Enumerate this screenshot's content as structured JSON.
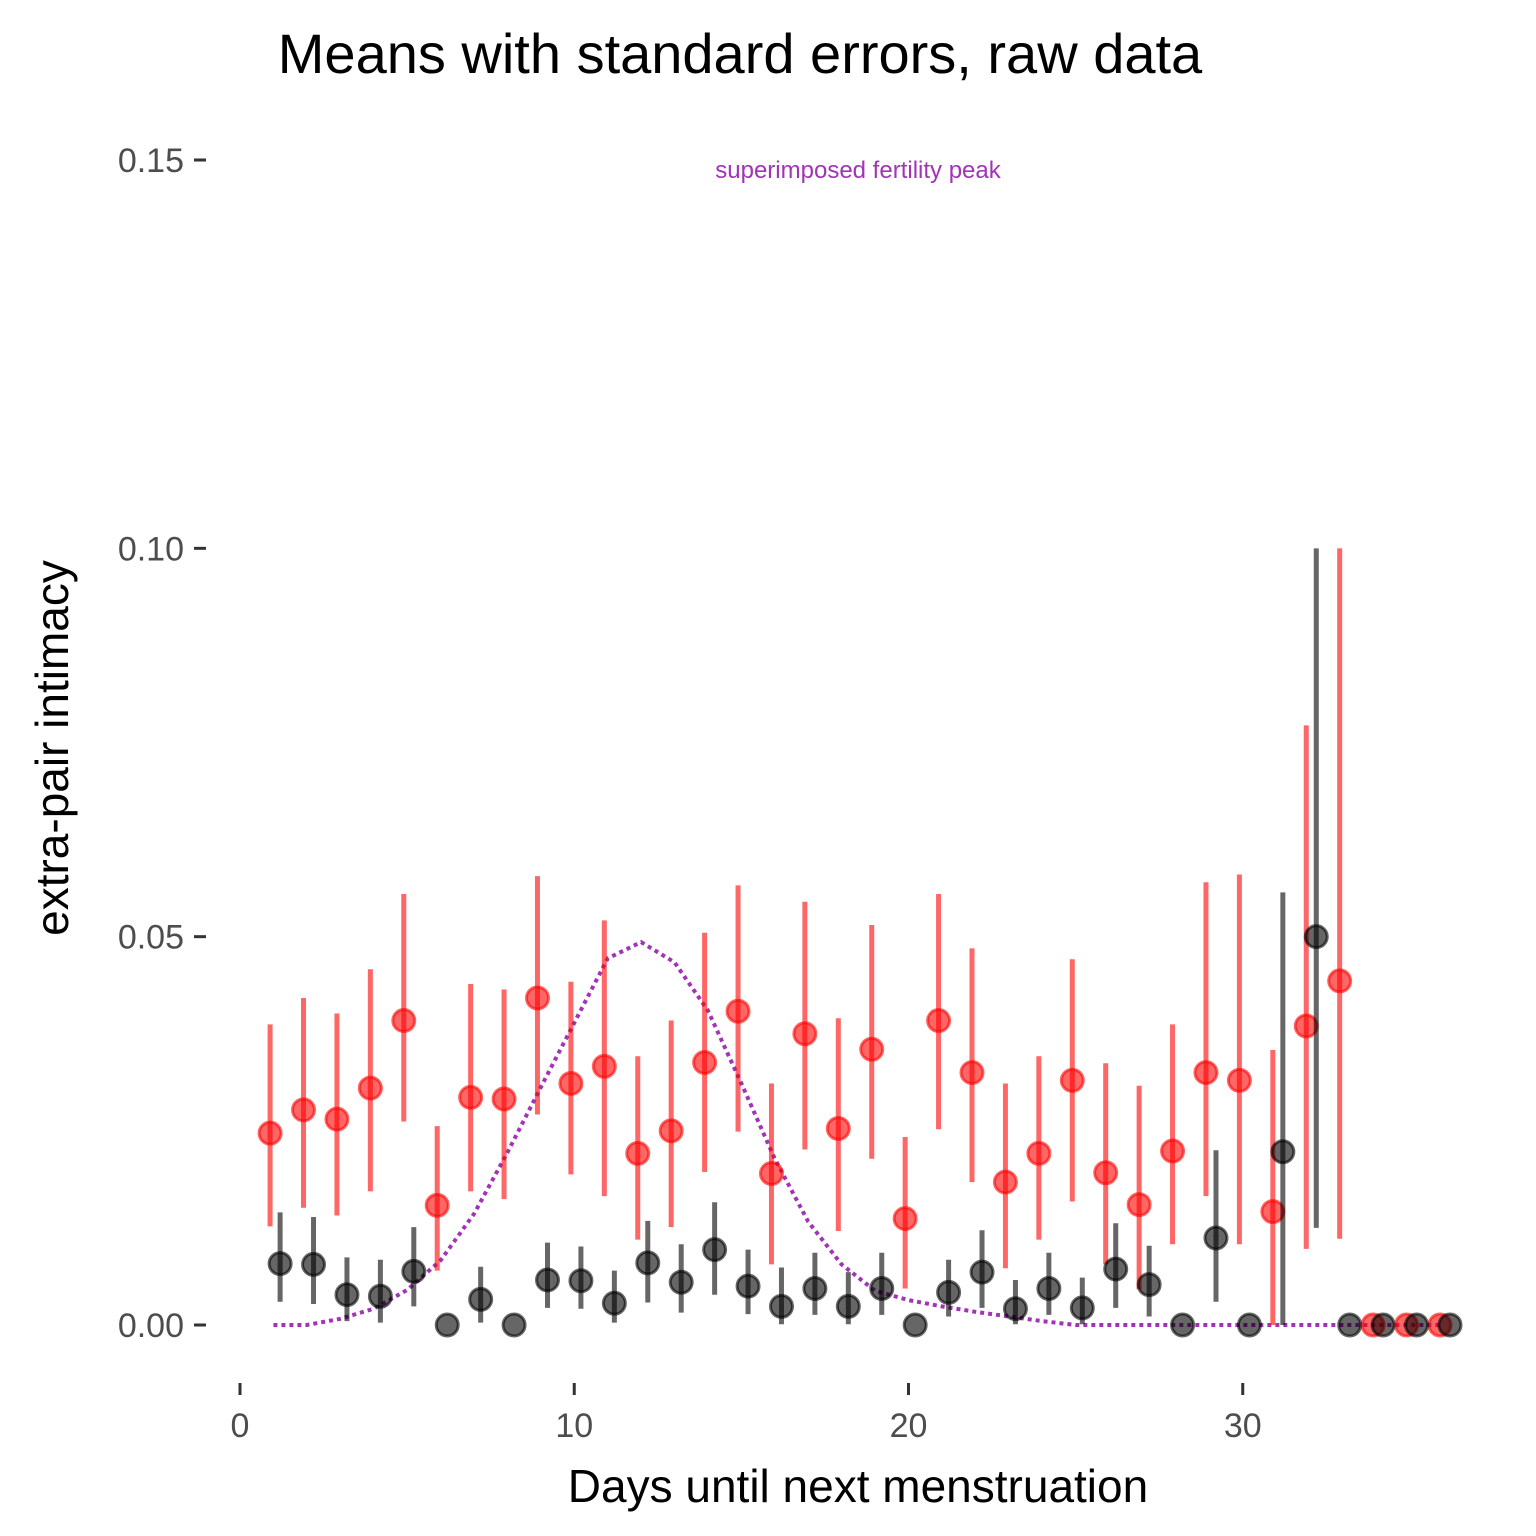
{
  "chart_data": {
    "type": "scatter",
    "title": "Means with standard errors, raw data",
    "xlabel": "Days until next menstruation",
    "ylabel": "extra-pair intimacy",
    "xlim": [
      0,
      36.5
    ],
    "ylim": [
      0,
      0.15
    ],
    "x_ticks": [
      0,
      10,
      20,
      30
    ],
    "y_ticks": [
      0.0,
      0.05,
      0.1,
      0.15
    ],
    "x_tick_labels": [
      "0",
      "10",
      "20",
      "30"
    ],
    "y_tick_labels": [
      "0.00",
      "0.05",
      "0.10",
      "0.15"
    ],
    "grid": false,
    "annotation": {
      "text": "superimposed fertility peak",
      "x": 18.5,
      "y": 0.149,
      "color": "#a233b7"
    },
    "series": [
      {
        "color": "#ff0000",
        "points": [
          {
            "x": 0.9,
            "y": 0.0247,
            "lo": 0.0127,
            "hi": 0.0387
          },
          {
            "x": 1.9,
            "y": 0.0277,
            "lo": 0.0151,
            "hi": 0.0421
          },
          {
            "x": 2.9,
            "y": 0.0265,
            "lo": 0.0141,
            "hi": 0.0401
          },
          {
            "x": 3.9,
            "y": 0.0305,
            "lo": 0.0172,
            "hi": 0.0458
          },
          {
            "x": 4.9,
            "y": 0.0392,
            "lo": 0.0262,
            "hi": 0.0555
          },
          {
            "x": 5.9,
            "y": 0.0154,
            "lo": 0.007,
            "hi": 0.0256
          },
          {
            "x": 6.9,
            "y": 0.0293,
            "lo": 0.0172,
            "hi": 0.0439
          },
          {
            "x": 7.9,
            "y": 0.0291,
            "lo": 0.0162,
            "hi": 0.0432
          },
          {
            "x": 8.9,
            "y": 0.0421,
            "lo": 0.0271,
            "hi": 0.0578
          },
          {
            "x": 9.9,
            "y": 0.0311,
            "lo": 0.0194,
            "hi": 0.0442
          },
          {
            "x": 10.9,
            "y": 0.0333,
            "lo": 0.0166,
            "hi": 0.0521
          },
          {
            "x": 11.9,
            "y": 0.0221,
            "lo": 0.011,
            "hi": 0.0346
          },
          {
            "x": 12.9,
            "y": 0.025,
            "lo": 0.0126,
            "hi": 0.0392
          },
          {
            "x": 13.9,
            "y": 0.0338,
            "lo": 0.0197,
            "hi": 0.0505
          },
          {
            "x": 14.9,
            "y": 0.0404,
            "lo": 0.0249,
            "hi": 0.0566
          },
          {
            "x": 15.9,
            "y": 0.0195,
            "lo": 0.0078,
            "hi": 0.0311
          },
          {
            "x": 16.9,
            "y": 0.0375,
            "lo": 0.0226,
            "hi": 0.0545
          },
          {
            "x": 17.9,
            "y": 0.0253,
            "lo": 0.0121,
            "hi": 0.0395
          },
          {
            "x": 18.9,
            "y": 0.0355,
            "lo": 0.0214,
            "hi": 0.0515
          },
          {
            "x": 19.9,
            "y": 0.0137,
            "lo": 0.0047,
            "hi": 0.0242
          },
          {
            "x": 20.9,
            "y": 0.0392,
            "lo": 0.0252,
            "hi": 0.0555
          },
          {
            "x": 21.9,
            "y": 0.0325,
            "lo": 0.0184,
            "hi": 0.0485
          },
          {
            "x": 22.9,
            "y": 0.0184,
            "lo": 0.0073,
            "hi": 0.0311
          },
          {
            "x": 23.9,
            "y": 0.0221,
            "lo": 0.011,
            "hi": 0.0346
          },
          {
            "x": 24.9,
            "y": 0.0315,
            "lo": 0.0159,
            "hi": 0.0471
          },
          {
            "x": 25.9,
            "y": 0.0196,
            "lo": 0.0078,
            "hi": 0.0337
          },
          {
            "x": 26.9,
            "y": 0.0155,
            "lo": 0.0046,
            "hi": 0.0308
          },
          {
            "x": 27.9,
            "y": 0.0224,
            "lo": 0.0104,
            "hi": 0.0387
          },
          {
            "x": 28.9,
            "y": 0.0325,
            "lo": 0.0166,
            "hi": 0.057
          },
          {
            "x": 29.9,
            "y": 0.0315,
            "lo": 0.0104,
            "hi": 0.058
          },
          {
            "x": 30.9,
            "y": 0.0146,
            "lo": 0.0,
            "hi": 0.0354
          },
          {
            "x": 31.9,
            "y": 0.0385,
            "lo": 0.0098,
            "hi": 0.0772
          },
          {
            "x": 32.9,
            "y": 0.0443,
            "lo": 0.0111,
            "hi": 0.1
          },
          {
            "x": 33.9,
            "y": 0.0,
            "lo": 0.0,
            "hi": 0.0
          },
          {
            "x": 34.9,
            "y": 0.0,
            "lo": 0.0,
            "hi": 0.0
          },
          {
            "x": 35.9,
            "y": 0.0,
            "lo": 0.0,
            "hi": 0.0
          }
        ]
      },
      {
        "color": "#000000",
        "points": [
          {
            "x": 1.2,
            "y": 0.0079,
            "lo": 0.003,
            "hi": 0.0145
          },
          {
            "x": 2.2,
            "y": 0.0078,
            "lo": 0.0027,
            "hi": 0.0139
          },
          {
            "x": 3.2,
            "y": 0.0039,
            "lo": 0.0005,
            "hi": 0.0087
          },
          {
            "x": 4.2,
            "y": 0.0037,
            "lo": 0.0003,
            "hi": 0.0084
          },
          {
            "x": 5.2,
            "y": 0.0069,
            "lo": 0.0024,
            "hi": 0.0126
          },
          {
            "x": 6.2,
            "y": 0.0,
            "lo": 0.0,
            "hi": 0.0
          },
          {
            "x": 7.2,
            "y": 0.0033,
            "lo": 0.0003,
            "hi": 0.0075
          },
          {
            "x": 8.2,
            "y": 0.0,
            "lo": 0.0,
            "hi": 0.0
          },
          {
            "x": 9.2,
            "y": 0.0058,
            "lo": 0.0022,
            "hi": 0.0106
          },
          {
            "x": 10.2,
            "y": 0.0057,
            "lo": 0.0021,
            "hi": 0.0101
          },
          {
            "x": 11.2,
            "y": 0.0028,
            "lo": 0.0003,
            "hi": 0.007
          },
          {
            "x": 12.2,
            "y": 0.008,
            "lo": 0.0029,
            "hi": 0.0134
          },
          {
            "x": 13.2,
            "y": 0.0055,
            "lo": 0.0016,
            "hi": 0.0104
          },
          {
            "x": 14.2,
            "y": 0.0097,
            "lo": 0.0039,
            "hi": 0.0158
          },
          {
            "x": 15.2,
            "y": 0.005,
            "lo": 0.0014,
            "hi": 0.0097
          },
          {
            "x": 16.2,
            "y": 0.0024,
            "lo": 0.0001,
            "hi": 0.0074
          },
          {
            "x": 17.2,
            "y": 0.0047,
            "lo": 0.0013,
            "hi": 0.0093
          },
          {
            "x": 18.2,
            "y": 0.0024,
            "lo": 0.0001,
            "hi": 0.0068
          },
          {
            "x": 19.2,
            "y": 0.0047,
            "lo": 0.0013,
            "hi": 0.0093
          },
          {
            "x": 20.2,
            "y": 0.0,
            "lo": 0.0,
            "hi": 0.0
          },
          {
            "x": 21.2,
            "y": 0.0042,
            "lo": 0.0011,
            "hi": 0.0084
          },
          {
            "x": 22.2,
            "y": 0.0068,
            "lo": 0.0022,
            "hi": 0.0122
          },
          {
            "x": 23.2,
            "y": 0.0021,
            "lo": 0.0001,
            "hi": 0.0058
          },
          {
            "x": 24.2,
            "y": 0.0047,
            "lo": 0.0013,
            "hi": 0.0093
          },
          {
            "x": 25.2,
            "y": 0.0022,
            "lo": 0.0001,
            "hi": 0.0061
          },
          {
            "x": 26.2,
            "y": 0.0072,
            "lo": 0.0022,
            "hi": 0.0131
          },
          {
            "x": 27.2,
            "y": 0.0052,
            "lo": 0.0011,
            "hi": 0.0102
          },
          {
            "x": 28.2,
            "y": 0.0,
            "lo": 0.0,
            "hi": 0.0
          },
          {
            "x": 29.2,
            "y": 0.0112,
            "lo": 0.003,
            "hi": 0.0225
          },
          {
            "x": 30.2,
            "y": 0.0,
            "lo": 0.0,
            "hi": 0.0
          },
          {
            "x": 31.2,
            "y": 0.0223,
            "lo": 0.0,
            "hi": 0.0557
          },
          {
            "x": 32.2,
            "y": 0.05,
            "lo": 0.0125,
            "hi": 0.1
          },
          {
            "x": 33.2,
            "y": 0.0,
            "lo": 0.0,
            "hi": 0.0
          },
          {
            "x": 34.2,
            "y": 0.0,
            "lo": 0.0,
            "hi": 0.0
          },
          {
            "x": 35.2,
            "y": 0.0,
            "lo": 0.0,
            "hi": 0.0
          },
          {
            "x": 36.2,
            "y": 0.0,
            "lo": 0.0,
            "hi": 0.0
          }
        ]
      },
      {
        "name": "superimposed fertility peak",
        "type": "line",
        "style": "dotted",
        "color": "#a233b7",
        "x": [
          1,
          2,
          3,
          4,
          5,
          6,
          7,
          8,
          9,
          10,
          11,
          12,
          13,
          14,
          15,
          16,
          17,
          18,
          19,
          20,
          21,
          22,
          23,
          24,
          25,
          26,
          27,
          28,
          29,
          30,
          31,
          32,
          33,
          34,
          35,
          36
        ],
        "y": [
          0.0,
          0.0,
          0.0008,
          0.0021,
          0.0045,
          0.0083,
          0.0143,
          0.0222,
          0.0306,
          0.0389,
          0.0472,
          0.0493,
          0.0467,
          0.0405,
          0.0311,
          0.0214,
          0.0133,
          0.0078,
          0.0044,
          0.0032,
          0.0024,
          0.0017,
          0.0011,
          0.0005,
          0.0,
          0.0,
          0.0,
          0.0,
          0.0,
          0.0,
          0.0,
          0.0,
          0.0,
          0.0,
          0.0,
          0.0
        ]
      }
    ]
  }
}
